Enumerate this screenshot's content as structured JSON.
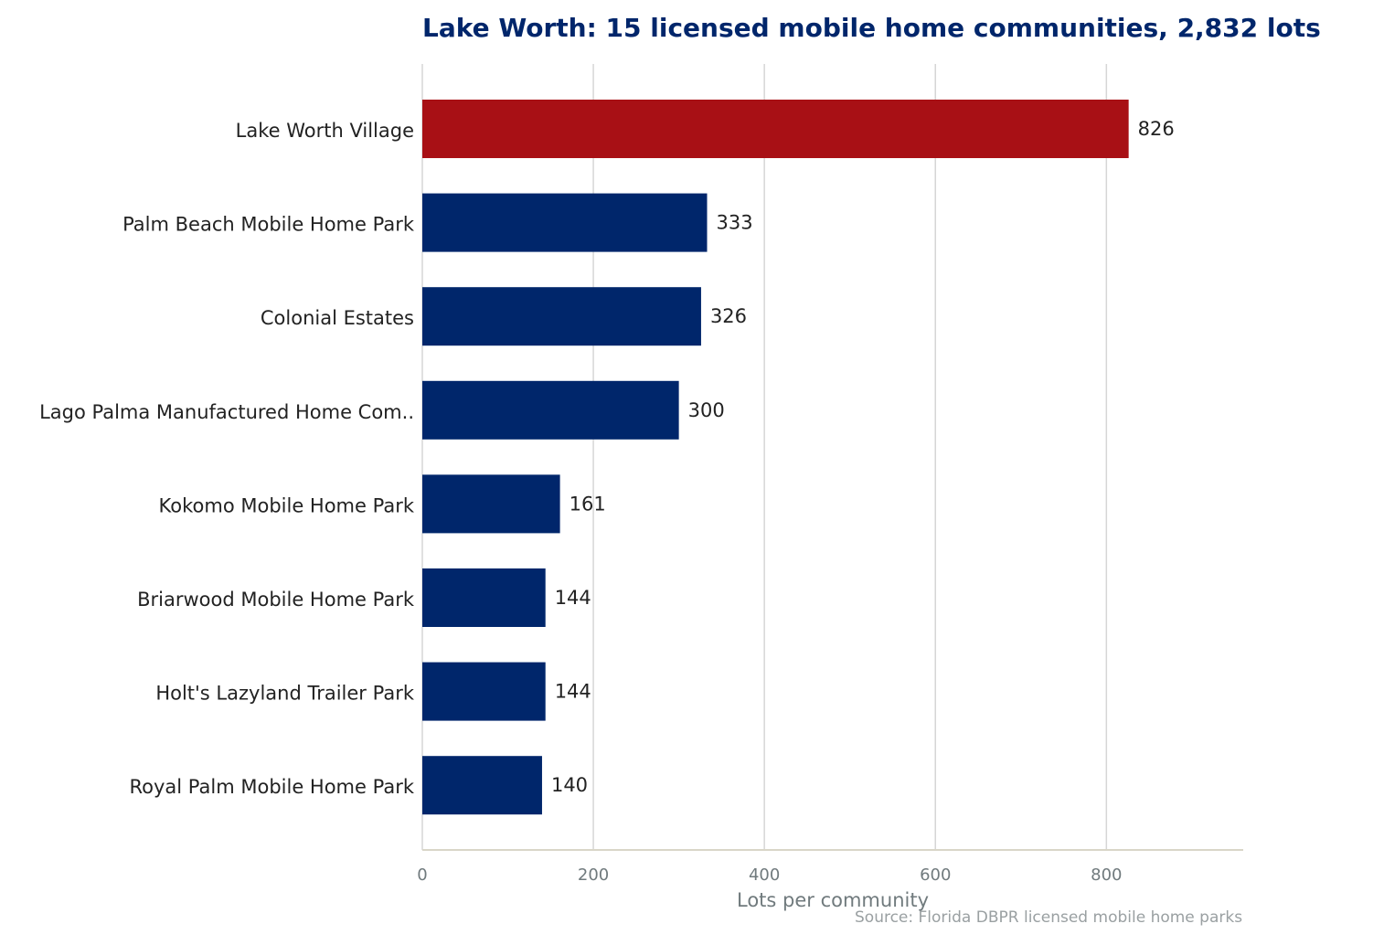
{
  "chart_data": {
    "type": "bar",
    "orientation": "horizontal",
    "title": "Lake Worth: 15 licensed mobile home communities, 2,832 lots",
    "xlabel": "Lots per community",
    "ylabel": "",
    "source": "Source: Florida DBPR licensed mobile home parks",
    "categories": [
      "Lake Worth Village",
      "Palm Beach Mobile Home Park",
      "Colonial Estates",
      "Lago Palma Manufactured Home Com..",
      "Kokomo Mobile Home Park",
      "Briarwood Mobile Home Park",
      "Holt's Lazyland Trailer Park",
      "Royal Palm Mobile Home Park"
    ],
    "values": [
      826,
      333,
      326,
      300,
      161,
      144,
      144,
      140
    ],
    "value_labels": [
      "826",
      "333",
      "326",
      "300",
      "161",
      "144",
      "144",
      "140"
    ],
    "highlight_index": 0,
    "xlim": [
      0,
      960
    ],
    "xticks": [
      0,
      200,
      400,
      600,
      800
    ],
    "xtick_labels": [
      "0",
      "200",
      "400",
      "600",
      "800"
    ],
    "grid": "vertical",
    "colors": {
      "bar": "#00266b",
      "highlight": "#a81015",
      "title": "#00266b"
    }
  }
}
